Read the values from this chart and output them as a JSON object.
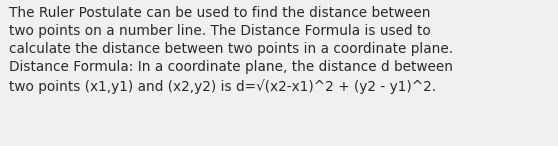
{
  "background_color": "#f0f0f0",
  "text_color": "#2a2a2a",
  "font_size": 9.8,
  "lines": [
    "The Ruler Postulate can be used to find the distance between",
    "two points on a number line. The Distance Formula is used to",
    "calculate the distance between two points in a coordinate plane.",
    "Distance Formula: In a coordinate plane, the distance d between",
    "two points (x1,y1) and (x2,y2) is d=√(x2-x1)^2 + (y2 - y1)^2."
  ],
  "fig_width": 5.58,
  "fig_height": 1.46,
  "dpi": 100
}
